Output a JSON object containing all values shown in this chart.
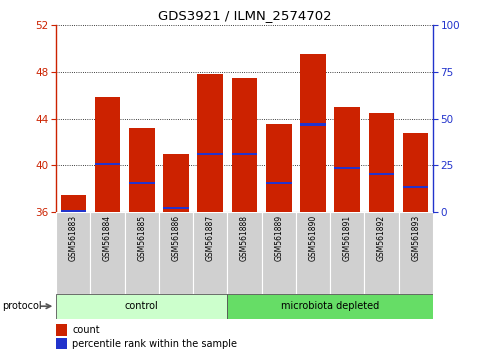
{
  "title": "GDS3921 / ILMN_2574702",
  "samples": [
    "GSM561883",
    "GSM561884",
    "GSM561885",
    "GSM561886",
    "GSM561887",
    "GSM561888",
    "GSM561889",
    "GSM561890",
    "GSM561891",
    "GSM561892",
    "GSM561893"
  ],
  "bar_heights": [
    37.5,
    45.8,
    43.2,
    41.0,
    47.8,
    47.5,
    43.5,
    49.5,
    45.0,
    44.5,
    42.8
  ],
  "blue_markers": [
    36.1,
    40.1,
    38.5,
    36.4,
    41.0,
    41.0,
    38.5,
    43.5,
    39.8,
    39.3,
    38.2
  ],
  "y_min": 36,
  "y_max": 52,
  "y_ticks_red": [
    36,
    40,
    44,
    48,
    52
  ],
  "y_ticks_blue": [
    0,
    25,
    50,
    75,
    100
  ],
  "bar_color": "#cc2200",
  "blue_color": "#2233cc",
  "bar_width": 0.75,
  "groups": [
    {
      "label": "control",
      "start": 0,
      "end": 5,
      "color": "#ccffcc"
    },
    {
      "label": "microbiota depleted",
      "start": 5,
      "end": 11,
      "color": "#66dd66"
    }
  ],
  "protocol_label": "protocol",
  "legend_count": "count",
  "legend_percentile": "percentile rank within the sample"
}
